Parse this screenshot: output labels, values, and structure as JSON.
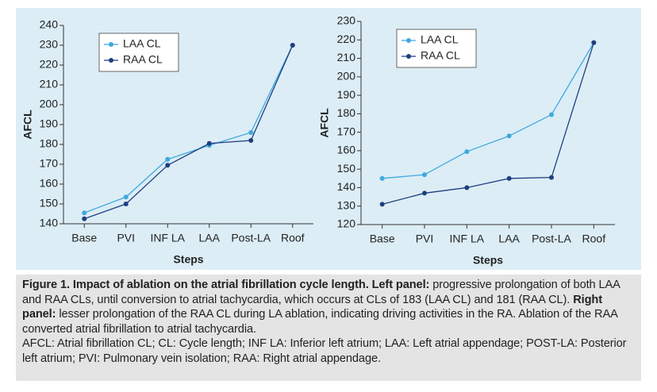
{
  "chart_data": [
    {
      "type": "line",
      "xlabel": "Steps",
      "ylabel": "AFCL",
      "categories": [
        "Base",
        "PVI",
        "INF LA",
        "LAA",
        "Post-LA",
        "Roof"
      ],
      "series": [
        {
          "name": "LAA CL",
          "color": "#3fa9de",
          "values": [
            145.5,
            153.5,
            172.5,
            179.5,
            186,
            230
          ]
        },
        {
          "name": "RAA CL",
          "color": "#1f3f7f",
          "values": [
            142.5,
            150,
            169.5,
            180.5,
            182,
            230
          ]
        }
      ],
      "ylim": [
        140,
        240
      ],
      "yticks": [
        140,
        150,
        160,
        170,
        180,
        190,
        200,
        210,
        220,
        230,
        240
      ],
      "legend": "upper left"
    },
    {
      "type": "line",
      "xlabel": "Steps",
      "ylabel": "AFCL",
      "categories": [
        "Base",
        "PVI",
        "INF LA",
        "LAA",
        "Post-LA",
        "Roof"
      ],
      "series": [
        {
          "name": "LAA CL",
          "color": "#3fa9de",
          "values": [
            145,
            147,
            159.5,
            168,
            179.5,
            218.5
          ]
        },
        {
          "name": "RAA CL",
          "color": "#1f3f7f",
          "values": [
            131,
            137,
            140,
            145,
            145.5,
            218.5
          ]
        }
      ],
      "ylim": [
        120,
        230
      ],
      "yticks": [
        120,
        130,
        140,
        150,
        160,
        170,
        180,
        190,
        200,
        210,
        220,
        230
      ],
      "legend": "upper left"
    }
  ],
  "caption": {
    "segments": [
      {
        "text": "Figure 1. Impact of ablation on the atrial fibrillation cycle length. Left panel:",
        "bold": true
      },
      {
        "text": " progressive prolongation of both LAA and RAA CLs, until conversion to atrial tachycardia, which occurs at CLs of 183 (LAA CL) and 181 (RAA CL). ",
        "bold": false
      },
      {
        "text": "Right panel:",
        "bold": true
      },
      {
        "text": " lesser prolongation of the RAA CL during LA ablation, indicating driving activities in the RA. Ablation of the RAA converted atrial fibrillation to atrial tachycardia.",
        "bold": false
      }
    ],
    "abbreviations": "AFCL: Atrial fibrillation CL; CL: Cycle length; INF LA: Inferior left atrium; LAA: Left atrial appendage; POST-LA: Posterior left atrium; PVI: Pulmonary vein isolation; RAA: Right atrial appendage."
  }
}
